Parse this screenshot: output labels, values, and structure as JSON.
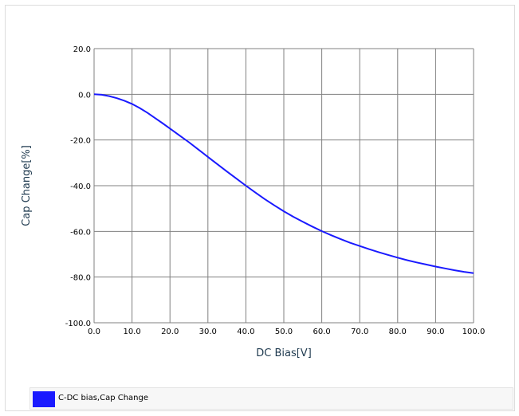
{
  "chart_data": {
    "type": "line",
    "title": "",
    "xlabel": "DC Bias[V]",
    "ylabel": "Cap Change[%]",
    "xlim": [
      0,
      100
    ],
    "ylim": [
      -100,
      20
    ],
    "xticks": [
      "0.0",
      "10.0",
      "20.0",
      "30.0",
      "40.0",
      "50.0",
      "60.0",
      "70.0",
      "80.0",
      "90.0",
      "100.0"
    ],
    "yticks": [
      "20.0",
      "0.0",
      "-20.0",
      "-40.0",
      "-60.0",
      "-80.0",
      "-100.0"
    ],
    "grid": true,
    "legend_position": "bottom",
    "series": [
      {
        "name": "C-DC bias,Cap Change",
        "color": "#1a1aff",
        "x": [
          0,
          2,
          4,
          6,
          8,
          10,
          12,
          14,
          16,
          18,
          20,
          22.5,
          25,
          27.5,
          30,
          32.5,
          35,
          37.5,
          40,
          42.5,
          45,
          47.5,
          50,
          52.5,
          55,
          57.5,
          60,
          62.5,
          65,
          67.5,
          70,
          72.5,
          75,
          77.5,
          80,
          82.5,
          85,
          87.5,
          90,
          92.5,
          95,
          97.5,
          100
        ],
        "y": [
          0,
          -0.2,
          -0.8,
          -1.7,
          -2.8,
          -4.2,
          -6.0,
          -8.0,
          -10.3,
          -12.6,
          -15.0,
          -18.0,
          -21.0,
          -24.2,
          -27.4,
          -30.6,
          -33.8,
          -36.9,
          -40.0,
          -43.0,
          -45.9,
          -48.6,
          -51.2,
          -53.6,
          -55.8,
          -57.9,
          -59.9,
          -61.7,
          -63.4,
          -65.0,
          -66.4,
          -67.8,
          -69.1,
          -70.3,
          -71.5,
          -72.6,
          -73.6,
          -74.5,
          -75.4,
          -76.2,
          -77.0,
          -77.7,
          -78.3
        ]
      }
    ]
  }
}
